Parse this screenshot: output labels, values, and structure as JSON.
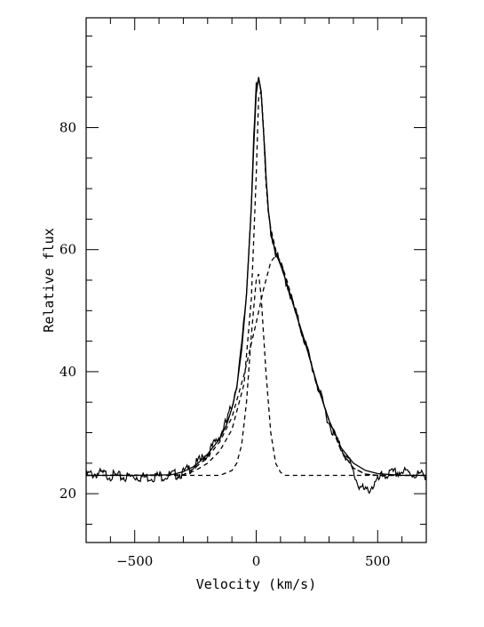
{
  "chart_data": {
    "type": "line",
    "title": "",
    "xlabel": "Velocity (km/s)",
    "ylabel": "Relative flux",
    "xlim": [
      -700,
      700
    ],
    "ylim": [
      12,
      98
    ],
    "x_ticks": [
      {
        "value": -500,
        "label": "−500"
      },
      {
        "value": 0,
        "label": "0"
      },
      {
        "value": 500,
        "label": "500"
      }
    ],
    "y_ticks": [
      {
        "value": 20,
        "label": "20"
      },
      {
        "value": 40,
        "label": "40"
      },
      {
        "value": 60,
        "label": "60"
      },
      {
        "value": 80,
        "label": "80"
      }
    ],
    "grid": false,
    "legend": "none",
    "series": [
      {
        "style": "solid-noisy",
        "points": [
          [
            -700,
            23.1
          ],
          [
            -650,
            23.3
          ],
          [
            -600,
            23.0
          ],
          [
            -550,
            22.7
          ],
          [
            -500,
            22.8
          ],
          [
            -450,
            22.7
          ],
          [
            -400,
            22.9
          ],
          [
            -350,
            23.0
          ],
          [
            -300,
            23.4
          ],
          [
            -250,
            24.8
          ],
          [
            -200,
            26.5
          ],
          [
            -150,
            29.5
          ],
          [
            -120,
            32.0
          ],
          [
            -100,
            34.5
          ],
          [
            -80,
            38.0
          ],
          [
            -60,
            44.0
          ],
          [
            -40,
            53.0
          ],
          [
            -20,
            68.0
          ],
          [
            -10,
            78.0
          ],
          [
            0,
            86.5
          ],
          [
            10,
            88.0
          ],
          [
            20,
            86.5
          ],
          [
            30,
            80.0
          ],
          [
            40,
            72.0
          ],
          [
            50,
            66.0
          ],
          [
            60,
            63.0
          ],
          [
            80,
            59.5
          ],
          [
            100,
            57.5
          ],
          [
            130,
            54.0
          ],
          [
            160,
            50.0
          ],
          [
            200,
            45.0
          ],
          [
            250,
            38.0
          ],
          [
            300,
            31.5
          ],
          [
            350,
            27.5
          ],
          [
            380,
            25.5
          ],
          [
            400,
            23.5
          ],
          [
            420,
            21.5
          ],
          [
            450,
            20.3
          ],
          [
            480,
            21.3
          ],
          [
            500,
            22.0
          ],
          [
            520,
            23.0
          ],
          [
            560,
            23.3
          ],
          [
            600,
            23.6
          ],
          [
            650,
            23.2
          ],
          [
            700,
            23.0
          ]
        ]
      },
      {
        "style": "solid",
        "points": [
          [
            -700,
            23.0
          ],
          [
            -500,
            23.0
          ],
          [
            -350,
            23.1
          ],
          [
            -300,
            23.6
          ],
          [
            -250,
            24.6
          ],
          [
            -200,
            26.5
          ],
          [
            -150,
            29.0
          ],
          [
            -120,
            31.5
          ],
          [
            -100,
            34.0
          ],
          [
            -80,
            37.5
          ],
          [
            -60,
            43.5
          ],
          [
            -40,
            52.5
          ],
          [
            -20,
            67.0
          ],
          [
            -10,
            77.0
          ],
          [
            0,
            85.5
          ],
          [
            10,
            88.3
          ],
          [
            20,
            86.0
          ],
          [
            30,
            79.5
          ],
          [
            40,
            72.0
          ],
          [
            50,
            66.5
          ],
          [
            60,
            63.0
          ],
          [
            80,
            59.5
          ],
          [
            100,
            57.5
          ],
          [
            130,
            54.0
          ],
          [
            160,
            50.0
          ],
          [
            200,
            45.0
          ],
          [
            250,
            38.0
          ],
          [
            300,
            32.0
          ],
          [
            350,
            27.5
          ],
          [
            400,
            25.0
          ],
          [
            450,
            23.8
          ],
          [
            500,
            23.3
          ],
          [
            600,
            23.0
          ],
          [
            700,
            23.0
          ]
        ]
      },
      {
        "style": "dashed",
        "points": [
          [
            -700,
            23.0
          ],
          [
            -350,
            23.0
          ],
          [
            -300,
            23.1
          ],
          [
            -250,
            23.8
          ],
          [
            -200,
            25.0
          ],
          [
            -150,
            27.0
          ],
          [
            -100,
            30.5
          ],
          [
            -50,
            38.0
          ],
          [
            -20,
            52.0
          ],
          [
            0,
            72.0
          ],
          [
            10,
            85.0
          ],
          [
            20,
            86.0
          ],
          [
            30,
            80.0
          ],
          [
            40,
            71.0
          ],
          [
            50,
            66.0
          ],
          [
            60,
            63.5
          ],
          [
            80,
            60.0
          ],
          [
            100,
            57.5
          ],
          [
            130,
            54.0
          ],
          [
            160,
            50.0
          ],
          [
            200,
            45.0
          ],
          [
            250,
            38.0
          ],
          [
            300,
            32.0
          ],
          [
            350,
            27.0
          ],
          [
            400,
            24.2
          ],
          [
            450,
            23.2
          ],
          [
            500,
            23.0
          ],
          [
            700,
            23.0
          ]
        ]
      },
      {
        "style": "dashed",
        "points": [
          [
            -700,
            23.0
          ],
          [
            -300,
            23.1
          ],
          [
            -250,
            24.3
          ],
          [
            -200,
            26.0
          ],
          [
            -150,
            28.5
          ],
          [
            -100,
            32.5
          ],
          [
            -50,
            39.5
          ],
          [
            0,
            48.0
          ],
          [
            30,
            53.5
          ],
          [
            60,
            58.0
          ],
          [
            80,
            59.0
          ],
          [
            100,
            58.2
          ],
          [
            130,
            54.5
          ],
          [
            160,
            50.0
          ],
          [
            200,
            45.0
          ],
          [
            250,
            38.0
          ],
          [
            300,
            32.0
          ],
          [
            350,
            27.0
          ],
          [
            400,
            24.2
          ],
          [
            450,
            23.2
          ],
          [
            500,
            23.0
          ],
          [
            700,
            23.0
          ]
        ]
      },
      {
        "style": "dashed",
        "points": [
          [
            -700,
            23.0
          ],
          [
            -150,
            23.0
          ],
          [
            -100,
            23.8
          ],
          [
            -80,
            25.0
          ],
          [
            -60,
            28.0
          ],
          [
            -40,
            35.0
          ],
          [
            -20,
            46.0
          ],
          [
            0,
            55.0
          ],
          [
            10,
            56.0
          ],
          [
            20,
            52.5
          ],
          [
            40,
            40.0
          ],
          [
            60,
            30.0
          ],
          [
            80,
            25.0
          ],
          [
            100,
            23.5
          ],
          [
            120,
            23.0
          ],
          [
            700,
            23.0
          ]
        ]
      }
    ]
  }
}
